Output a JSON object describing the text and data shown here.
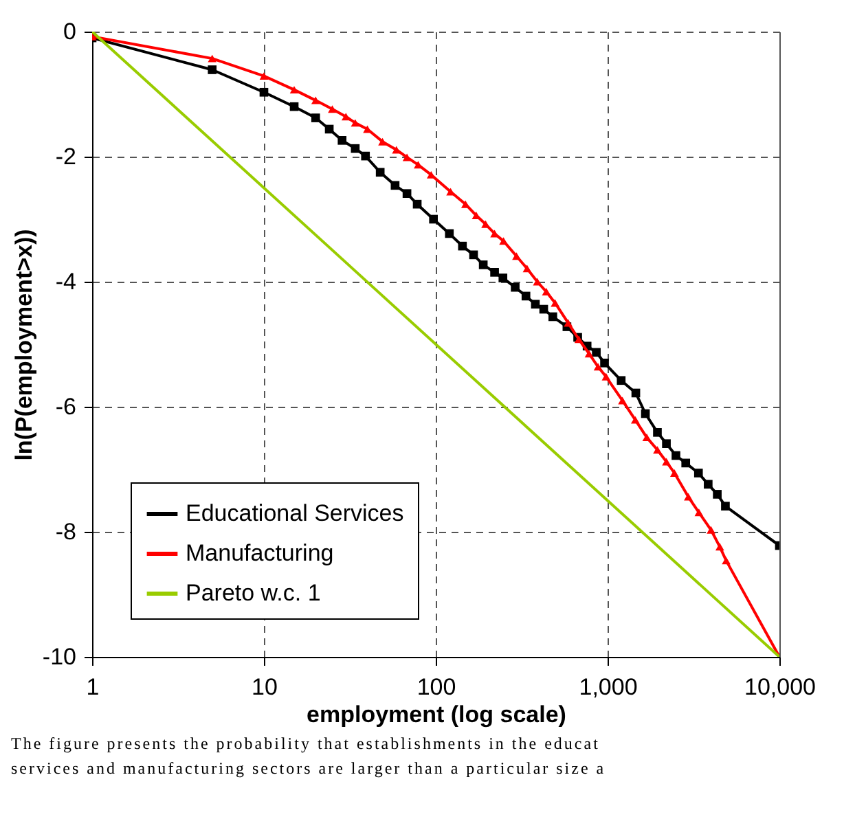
{
  "chart_data": {
    "type": "line",
    "xlabel": "employment (log scale)",
    "ylabel": "ln(P(employment>x))",
    "log": "x",
    "xlim": [
      1,
      10000
    ],
    "ylim": [
      -10,
      0
    ],
    "xticks": [
      1,
      10,
      100,
      {
        "value": 1000,
        "label": "1,000"
      },
      {
        "value": 10000,
        "label": "10,000"
      }
    ],
    "yticks": [
      -10,
      -8,
      -6,
      -4,
      -2,
      0
    ],
    "grid": true,
    "legend": "bottom left",
    "line_style": "solid",
    "series": [
      {
        "name": "Educational Services",
        "color": "#000000",
        "marker": "square",
        "x": [
          1,
          5,
          10,
          15,
          20,
          24,
          28.5,
          34,
          39,
          47.5,
          58,
          68,
          78,
          97,
          120,
          143,
          166,
          189,
          220,
          246,
          290,
          335,
          380,
          425,
          480,
          580,
          670,
          760,
          860,
          960,
          1200,
          1460,
          1660,
          1950,
          2200,
          2500,
          2850,
          3380,
          3850,
          4350,
          4850,
          10000
        ],
        "values": [
          -0.1,
          -0.61,
          -0.97,
          -1.2,
          -1.38,
          -1.56,
          -1.74,
          -1.87,
          -1.99,
          -2.25,
          -2.46,
          -2.59,
          -2.76,
          -3.0,
          -3.23,
          -3.43,
          -3.57,
          -3.73,
          -3.85,
          -3.94,
          -4.09,
          -4.23,
          -4.36,
          -4.44,
          -4.56,
          -4.72,
          -4.89,
          -5.03,
          -5.13,
          -5.3,
          -5.58,
          -5.78,
          -6.11,
          -6.41,
          -6.59,
          -6.78,
          -6.9,
          -7.06,
          -7.24,
          -7.4,
          -7.59,
          -8.22
        ]
      },
      {
        "name": "Manufacturing",
        "color": "#ff0000",
        "marker": "triangle",
        "x": [
          1,
          5,
          10,
          15,
          20,
          25,
          30,
          34,
          40,
          49,
          59,
          68,
          79,
          94,
          122,
          149,
          172,
          195,
          220,
          248,
          295,
          340,
          390,
          440,
          495,
          590,
          680,
          780,
          880,
          980,
          1220,
          1450,
          1690,
          1950,
          2200,
          2450,
          2950,
          3400,
          4000,
          4500,
          4900,
          10000
        ],
        "values": [
          -0.08,
          -0.43,
          -0.71,
          -0.93,
          -1.1,
          -1.24,
          -1.36,
          -1.46,
          -1.56,
          -1.76,
          -1.89,
          -2.01,
          -2.13,
          -2.29,
          -2.56,
          -2.76,
          -2.94,
          -3.08,
          -3.23,
          -3.35,
          -3.59,
          -3.79,
          -4.0,
          -4.16,
          -4.34,
          -4.66,
          -4.92,
          -5.15,
          -5.36,
          -5.52,
          -5.9,
          -6.21,
          -6.49,
          -6.69,
          -6.88,
          -7.06,
          -7.44,
          -7.69,
          -7.97,
          -8.24,
          -8.46,
          -10
        ]
      },
      {
        "name": "Pareto w.c. 1",
        "color": "#99cc00",
        "marker": "none",
        "x": [
          1,
          10000
        ],
        "values": [
          0,
          -10
        ]
      }
    ],
    "annotations": [
      "The figure presents the probability that establishments in the educat",
      "services and manufacturing sectors are larger than a particular size a"
    ]
  }
}
